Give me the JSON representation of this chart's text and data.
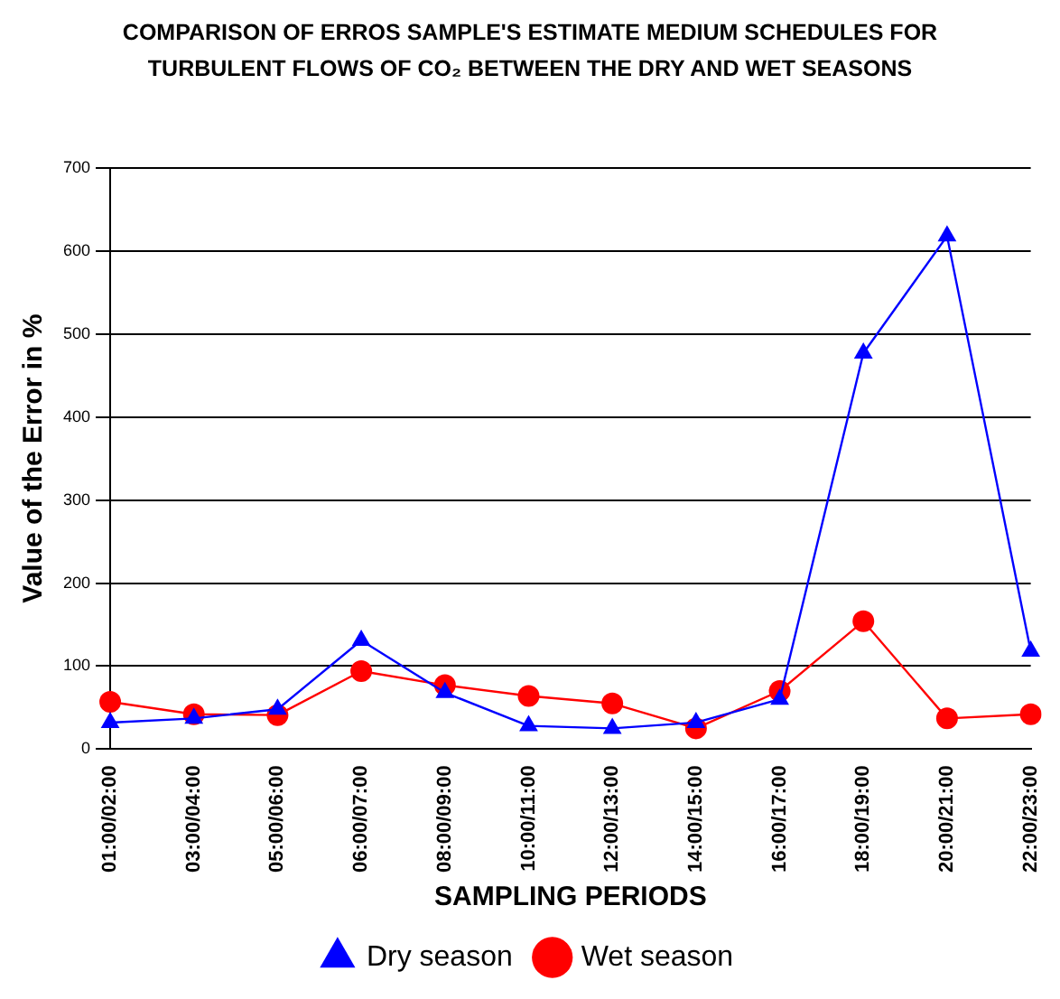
{
  "chart_data": {
    "type": "line",
    "title": "COMPARISON OF ERROS SAMPLE'S ESTIMATE MEDIUM SCHEDULES FOR TURBULENT FLOWS OF CO₂ BETWEEN THE DRY AND WET SEASONS",
    "xlabel": "SAMPLING PERIODS",
    "ylabel": "Value of the Error in %",
    "categories": [
      "01:00/02:00",
      "03:00/04:00",
      "05:00/06:00",
      "06:00/07:00",
      "08:00/09:00",
      "10:00/11:00",
      "12:00/13:00",
      "14:00/15:00",
      "16:00/17:00",
      "18:00/19:00",
      "20:00/21:00",
      "22:00/23:00"
    ],
    "series": [
      {
        "name": "Dry season",
        "color": "#0000ff",
        "marker": "triangle",
        "values": [
          32,
          37,
          48,
          131,
          68,
          28,
          25,
          32,
          60,
          477,
          618,
          118
        ]
      },
      {
        "name": "Wet season",
        "color": "#ff0000",
        "marker": "circle",
        "values": [
          57,
          42,
          41,
          94,
          77,
          64,
          55,
          25,
          70,
          154,
          37,
          42
        ]
      }
    ],
    "ylim": [
      0,
      700
    ],
    "yticks": [
      0,
      100,
      200,
      300,
      400,
      500,
      600,
      700
    ],
    "grid": "y",
    "legend": "bottom",
    "line_style": "solid"
  }
}
